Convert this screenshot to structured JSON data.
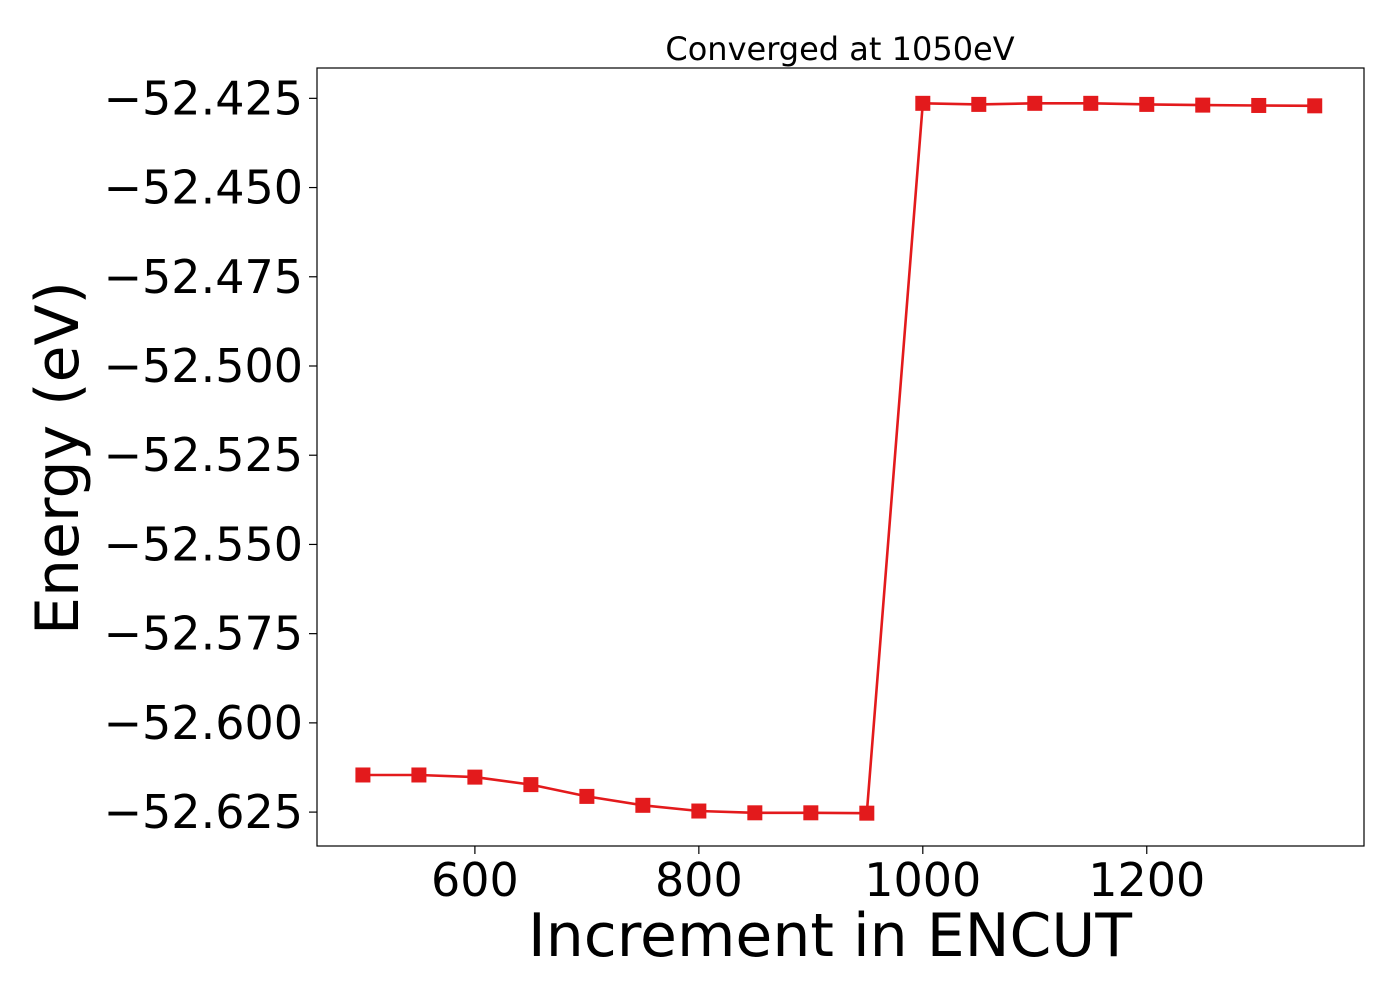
{
  "chart_data": {
    "type": "line",
    "title": "Converged at 1050eV",
    "xlabel": "Increment in ENCUT",
    "ylabel": "Energy (eV)",
    "xlim": [
      459,
      1394
    ],
    "ylim": [
      -52.6345,
      -52.4165
    ],
    "x_ticks": [
      600,
      800,
      1000,
      1200
    ],
    "x_tick_labels": [
      "600",
      "800",
      "1000",
      "1200"
    ],
    "y_ticks": [
      -52.425,
      -52.45,
      -52.475,
      -52.5,
      -52.525,
      -52.55,
      -52.575,
      -52.6,
      -52.625
    ],
    "y_tick_labels": [
      "−52.425",
      "−52.450",
      "−52.475",
      "−52.500",
      "−52.525",
      "−52.550",
      "−52.575",
      "−52.600",
      "−52.625"
    ],
    "grid": false,
    "series": [
      {
        "color": "#e31a1c",
        "marker": "square",
        "x": [
          500,
          550,
          600,
          650,
          700,
          750,
          800,
          850,
          900,
          950,
          1000,
          1050,
          1100,
          1150,
          1200,
          1250,
          1300,
          1350
        ],
        "values": [
          -52.6146,
          -52.6146,
          -52.6152,
          -52.6173,
          -52.6206,
          -52.6231,
          -52.6247,
          -52.6252,
          -52.6252,
          -52.6253,
          -52.4264,
          -52.4267,
          -52.4264,
          -52.4264,
          -52.4267,
          -52.4269,
          -52.427,
          -52.4271
        ]
      }
    ]
  }
}
